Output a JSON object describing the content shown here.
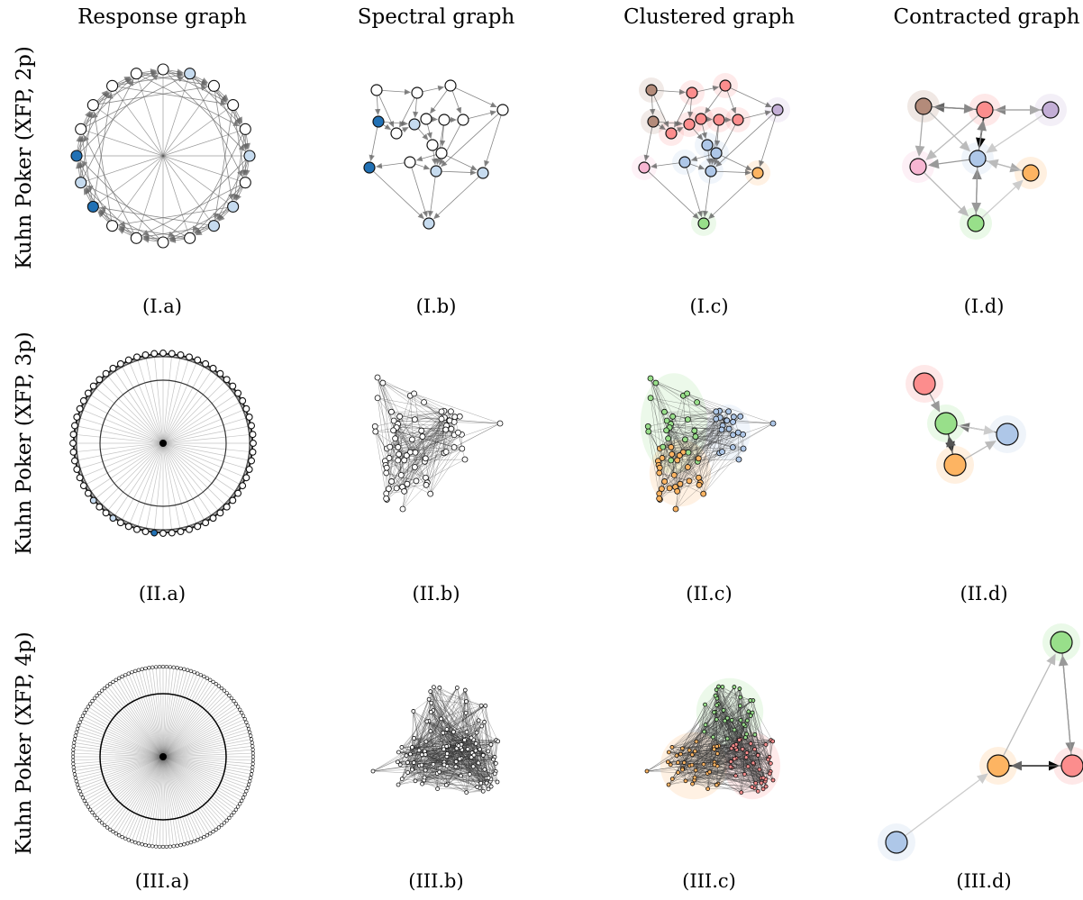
{
  "column_titles": [
    "Response graph",
    "Spectral graph",
    "Clustered graph",
    "Contracted graph"
  ],
  "row_labels": [
    "Kuhn Poker (XFP, 2p)",
    "Kuhn Poker (XFP, 3p)",
    "Kuhn Poker (XFP, 4p)"
  ],
  "panel_labels": [
    [
      "(I.a)",
      "(I.b)",
      "(I.c)",
      "(I.d)"
    ],
    [
      "(II.a)",
      "(II.b)",
      "(II.c)",
      "(II.d)"
    ],
    [
      "(III.a)",
      "(III.b)",
      "(III.c)",
      "(III.d)"
    ]
  ],
  "colors": {
    "node_white": "#ffffff",
    "node_light_blue": "#c6dbef",
    "node_mid_blue": "#9ecae1",
    "node_dark_blue": "#2171b5",
    "cluster_red": "#fc8d8d",
    "cluster_brown": "#b38b7a",
    "cluster_purple": "#c3aed6",
    "cluster_blue": "#aec7e8",
    "cluster_pink": "#f7b6d2",
    "cluster_orange": "#fdb462",
    "cluster_green": "#98df8a",
    "edge_gray": "#777777"
  },
  "contracted_graphs": [
    {
      "nodes": [
        "brown",
        "red",
        "purple",
        "pink",
        "blue",
        "orange",
        "green"
      ]
    },
    {
      "nodes": [
        "red",
        "green",
        "blue",
        "orange"
      ]
    },
    {
      "nodes": [
        "green",
        "orange",
        "red",
        "blue"
      ]
    }
  ]
}
